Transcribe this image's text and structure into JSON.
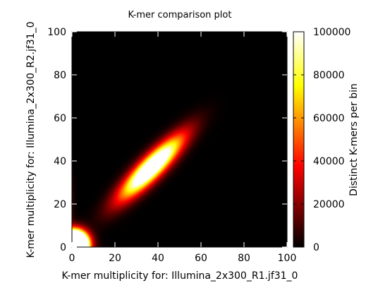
{
  "chart_data": {
    "type": "heatmap",
    "title": "K-mer comparison plot",
    "xlabel": "K-mer multiplicity for: Illumina_2x300_R1.jf31_0",
    "ylabel": "K-mer multiplicity for: Illumina_2x300_R2.jf31_0",
    "colorbar_label": "Distinct K-mers per bin",
    "xlim": [
      0,
      100
    ],
    "ylim": [
      0,
      100
    ],
    "zlim": [
      0,
      100000
    ],
    "x_ticks": [
      0,
      20,
      40,
      60,
      80,
      100
    ],
    "y_ticks": [
      0,
      20,
      40,
      60,
      80,
      100
    ],
    "colorbar_ticks": [
      0,
      20000,
      40000,
      60000,
      80000,
      100000
    ],
    "colormap": "black-red-yellow-white (hot)",
    "grid": false,
    "features": [
      {
        "name": "main-peak",
        "x_center": 37,
        "y_center": 37,
        "x_spread": 10,
        "y_spread": 10,
        "correlation": 0.88,
        "peak_count": 140000
      },
      {
        "name": "error-peak",
        "x_center": 1,
        "y_center": 1,
        "x_spread": 4,
        "y_spread": 4,
        "correlation": 0.0,
        "peak_count": 400000
      },
      {
        "name": "left-edge-tail",
        "x_center": 0,
        "y_center": 20,
        "x_spread": 1,
        "y_spread": 10,
        "correlation": 0.0,
        "peak_count": 6000
      }
    ]
  }
}
